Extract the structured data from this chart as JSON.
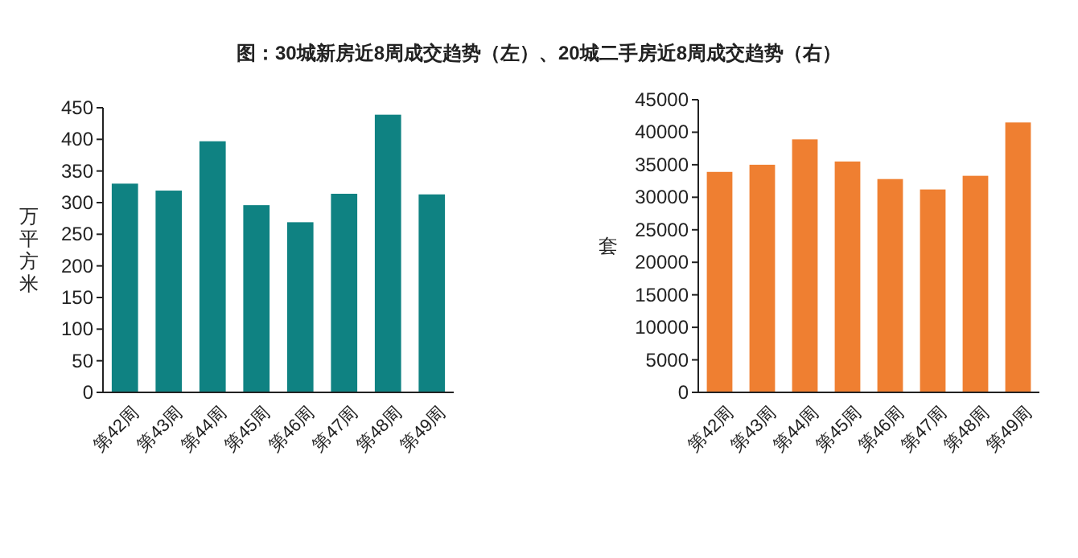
{
  "chart_data": [
    {
      "type": "bar",
      "title": "图：30城新房近8周成交趋势（左）、20城二手房近8周成交趋势（右）",
      "ylabel": "万平方米",
      "categories": [
        "第42周",
        "第43周",
        "第44周",
        "第45周",
        "第46周",
        "第47周",
        "第48周",
        "第49周"
      ],
      "values": [
        330,
        319,
        397,
        296,
        269,
        314,
        439,
        313
      ],
      "color": "#0f8282",
      "ylim": [
        0,
        450
      ],
      "yticks": [
        0,
        50,
        100,
        150,
        200,
        250,
        300,
        350,
        400,
        450
      ]
    },
    {
      "type": "bar",
      "ylabel": "套",
      "categories": [
        "第42周",
        "第43周",
        "第44周",
        "第45周",
        "第46周",
        "第47周",
        "第48周",
        "第49周"
      ],
      "values": [
        33900,
        35000,
        38900,
        35500,
        32800,
        31200,
        33300,
        41500
      ],
      "color": "#ef7f31",
      "ylim": [
        0,
        45000
      ],
      "yticks": [
        0,
        5000,
        10000,
        15000,
        20000,
        25000,
        30000,
        35000,
        40000,
        45000
      ]
    }
  ]
}
